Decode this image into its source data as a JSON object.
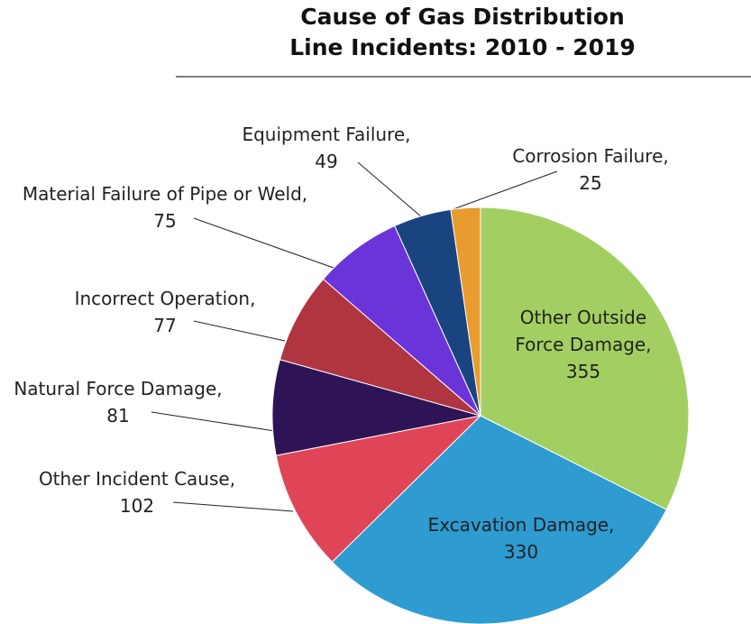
{
  "chart_data": {
    "type": "pie",
    "title": "Cause of Gas Distribution Line Incidents: 2010 - 2019",
    "categories": [
      "Other Outside Force Damage,",
      "Excavation Damage,",
      "Other Incident Cause,",
      "Natural Force Damage,",
      "Incorrect Operation,",
      "Material Failure of Pipe or Weld,",
      "Equipment Failure,",
      "Corrosion Failure,"
    ],
    "values": [
      355,
      330,
      102,
      81,
      77,
      75,
      49,
      25
    ],
    "colors": [
      "#a3cf62",
      "#2e9bd1",
      "#e04557",
      "#2e1457",
      "#b03540",
      "#6b34d9",
      "#1a4480",
      "#e89b2e"
    ]
  }
}
